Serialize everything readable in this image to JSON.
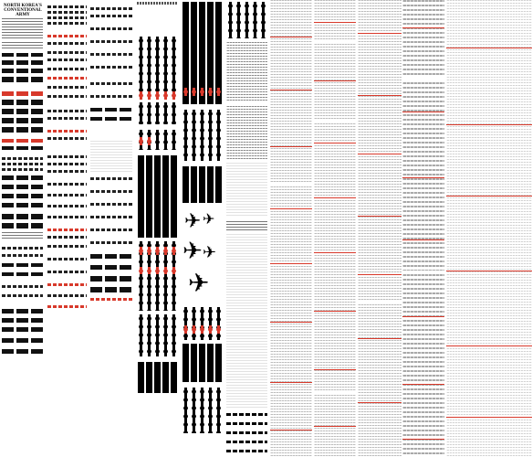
{
  "infographic": {
    "title": "NORTH KOREA'S CONVENTIONAL ARMY",
    "accent_color": "#d8392b",
    "ink_color": "#000000",
    "background_color": "#ffffff",
    "sections": [
      {
        "name": "naval-vessels",
        "icon": "ship-silhouette-icon"
      },
      {
        "name": "aircraft",
        "icon": "airplane-silhouette-icon"
      },
      {
        "name": "helicopters",
        "icon": "helicopter-silhouette-icon"
      },
      {
        "name": "ground-units",
        "icon": "tank-silhouette-icon"
      }
    ]
  }
}
